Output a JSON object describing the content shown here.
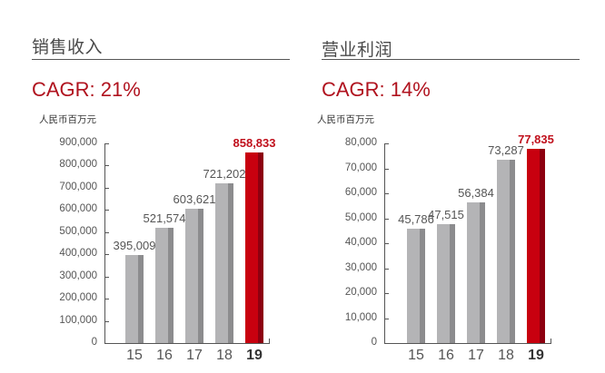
{
  "left": {
    "title": "销售收入",
    "cagr": "CAGR: 21%",
    "unit": "人民币百万元"
  },
  "right": {
    "title": "营业利润",
    "cagr": "CAGR: 14%",
    "unit": "人民币百万元"
  },
  "colors": {
    "accent": "#c8000f",
    "bar": "#b4b4b6",
    "bar_shade": "#8c8c8e",
    "cagr": "#b0121e"
  },
  "chart_data": [
    {
      "type": "bar",
      "title": "销售收入",
      "subtitle": "CAGR: 21%",
      "ylabel": "人民币百万元",
      "xlabel": "",
      "categories": [
        "15",
        "16",
        "17",
        "18",
        "19"
      ],
      "values": [
        395009,
        521574,
        603621,
        721202,
        858833
      ],
      "value_labels": [
        "395,009",
        "521,574",
        "603,621",
        "721,202",
        "858,833"
      ],
      "yticks": [
        "0",
        "100,000",
        "200,000",
        "300,000",
        "400,000",
        "500,000",
        "600,000",
        "700,000",
        "800,000",
        "900,000"
      ],
      "ylim": [
        0,
        900000
      ],
      "highlight_index": 4,
      "grid": false,
      "legend": null
    },
    {
      "type": "bar",
      "title": "营业利润",
      "subtitle": "CAGR: 14%",
      "ylabel": "人民币百万元",
      "xlabel": "",
      "categories": [
        "15",
        "16",
        "17",
        "18",
        "19"
      ],
      "values": [
        45786,
        47515,
        56384,
        73287,
        77835
      ],
      "value_labels": [
        "45,786",
        "47,515",
        "56,384",
        "73,287",
        "77,835"
      ],
      "yticks": [
        "0",
        "10,000",
        "20,000",
        "30,000",
        "40,000",
        "50,000",
        "60,000",
        "70,000",
        "80,000"
      ],
      "ylim": [
        0,
        80000
      ],
      "highlight_index": 4,
      "grid": false,
      "legend": null
    }
  ]
}
